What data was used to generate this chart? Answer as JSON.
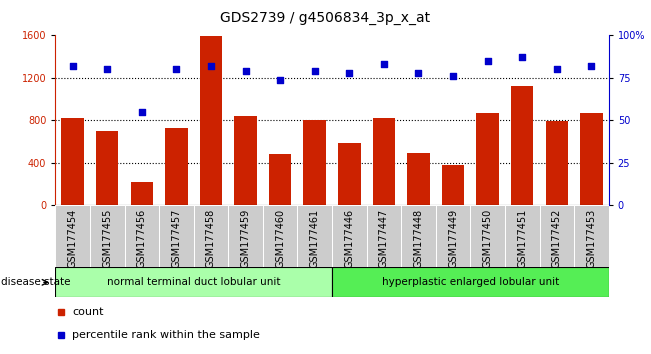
{
  "title": "GDS2739 / g4506834_3p_x_at",
  "categories": [
    "GSM177454",
    "GSM177455",
    "GSM177456",
    "GSM177457",
    "GSM177458",
    "GSM177459",
    "GSM177460",
    "GSM177461",
    "GSM177446",
    "GSM177447",
    "GSM177448",
    "GSM177449",
    "GSM177450",
    "GSM177451",
    "GSM177452",
    "GSM177453"
  ],
  "counts": [
    820,
    700,
    220,
    730,
    1590,
    840,
    480,
    800,
    590,
    820,
    490,
    380,
    870,
    1120,
    790,
    870
  ],
  "percentiles": [
    82,
    80,
    55,
    80,
    82,
    79,
    74,
    79,
    78,
    83,
    78,
    76,
    85,
    87,
    80,
    82
  ],
  "group1_label": "normal terminal duct lobular unit",
  "group1_count": 8,
  "group2_label": "hyperplastic enlarged lobular unit",
  "group2_count": 8,
  "disease_state_label": "disease state",
  "legend_count": "count",
  "legend_percentile": "percentile rank within the sample",
  "bar_color": "#cc2200",
  "dot_color": "#0000cc",
  "group1_color": "#aaffaa",
  "group2_color": "#55ee55",
  "ylim_left": [
    0,
    1600
  ],
  "ylim_right": [
    0,
    100
  ],
  "yticks_left": [
    0,
    400,
    800,
    1200,
    1600
  ],
  "yticks_right": [
    0,
    25,
    50,
    75,
    100
  ],
  "grid_vals": [
    400,
    800,
    1200
  ],
  "bar_color_dark": "#aa1100",
  "left_axis_color": "#cc2200",
  "right_axis_color": "#0000cc",
  "title_fontsize": 10,
  "tick_fontsize": 7,
  "bar_width": 0.65
}
